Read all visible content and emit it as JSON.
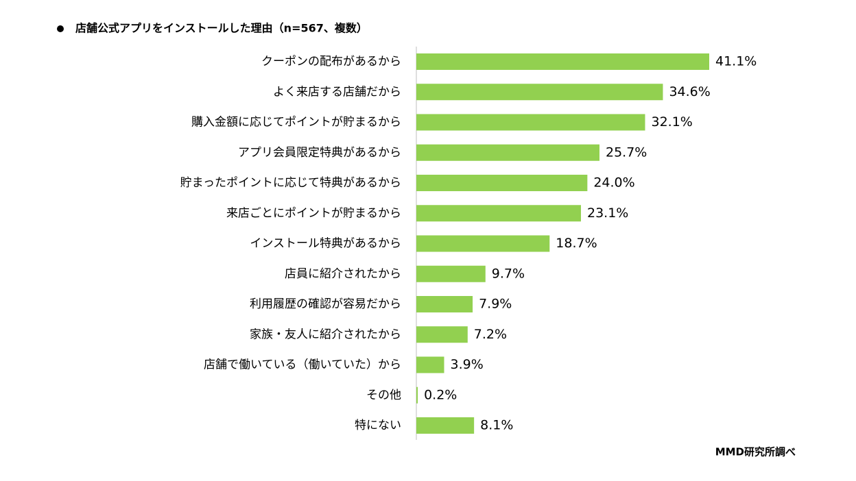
{
  "chart_data": {
    "type": "bar",
    "orientation": "horizontal",
    "title": "店舗公式アプリをインストールした理由（n=567、複数）",
    "source": "MMD研究所調べ",
    "color": "#92d050",
    "categories": [
      "クーポンの配布があるから",
      "よく来店する店舗だから",
      "購入金額に応じてポイントが貯まるから",
      "アプリ会員限定特典があるから",
      "貯まったポイントに応じて特典があるから",
      "来店ごとにポイントが貯まるから",
      "インストール特典があるから",
      "店員に紹介されたから",
      "利用履歴の確認が容易だから",
      "家族・友人に紹介されたから",
      "店舗で働いている（働いていた）から",
      "その他",
      "特にない"
    ],
    "values": [
      41.1,
      34.6,
      32.1,
      25.7,
      24.0,
      23.1,
      18.7,
      9.7,
      7.9,
      7.2,
      3.9,
      0.2,
      8.1
    ],
    "value_labels": [
      "41.1%",
      "34.6%",
      "32.1%",
      "25.7%",
      "24.0%",
      "23.1%",
      "18.7%",
      "9.7%",
      "7.9%",
      "7.2%",
      "3.9%",
      "0.2%",
      "8.1%"
    ]
  }
}
